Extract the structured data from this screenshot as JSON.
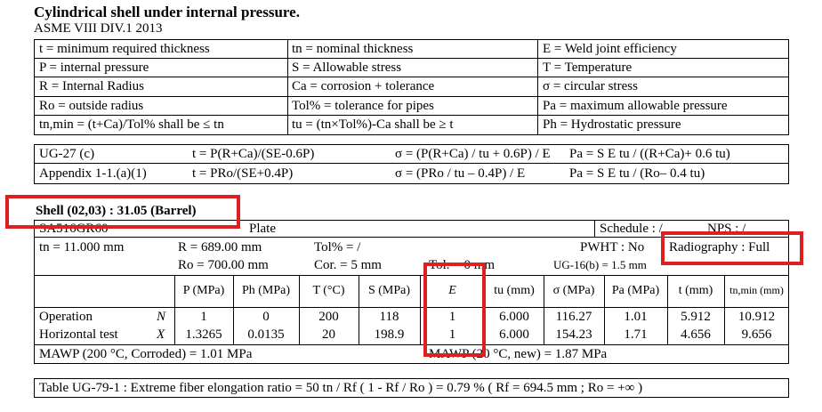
{
  "title": "Cylindrical shell under internal pressure.",
  "code": "ASME VIII DIV.1 2013",
  "legend": [
    [
      "t = minimum required thickness",
      "tn = nominal thickness",
      "E = Weld joint efficiency"
    ],
    [
      "P = internal pressure",
      "S = Allowable stress",
      "T = Temperature"
    ],
    [
      "R = Internal Radius",
      "Ca = corrosion + tolerance",
      "σ = circular stress"
    ],
    [
      "Ro = outside radius",
      "Tol% = tolerance for pipes",
      "Pa = maximum allowable pressure"
    ],
    [
      "tn,min = (t+Ca)/Tol% shall be ≤ tn",
      "tu = (tn×Tol%)-Ca shall be ≥ t",
      "Ph = Hydrostatic pressure"
    ]
  ],
  "formulas": [
    {
      "ref": "UG-27 (c)",
      "t": "t = P(R+Ca)/(SE-0.6P)",
      "sigma": "σ = (P(R+Ca) / tu + 0.6P) / E",
      "pa": "Pa = S E tu / ((R+Ca)+ 0.6 tu)"
    },
    {
      "ref": "Appendix 1-1.(a)(1)",
      "t": "t = PRo/(SE+0.4P)",
      "sigma": "σ = (PRo / tu – 0.4P) / E",
      "pa": "Pa = S E tu / (Ro– 0.4 tu)"
    }
  ],
  "shell": {
    "heading": "Shell (02,03) : 31.05 (Barrel)",
    "material": "SA516GR60",
    "form": "Plate",
    "schedule": "Schedule : /",
    "nps": "NPS : /",
    "tn": "tn = 11.000 mm",
    "R": "R = 689.00 mm",
    "tol": "Tol% = /",
    "pwht": "PWHT : No",
    "radiography": "Radiography : Full",
    "Ro": "Ro = 700.00 mm",
    "cor": "Cor. = 5 mm",
    "tolx": "Tol. = 0 mm",
    "ug16": "UG-16(b) = 1.5 mm"
  },
  "table": {
    "headers": [
      "P (MPa)",
      "Ph (MPa)",
      "T (°C)",
      "S (MPa)",
      "E",
      "tu (mm)",
      "σ (MPa)",
      "Pa (MPa)",
      "t (mm)",
      "tn,min (mm)"
    ],
    "rows": [
      {
        "label": "Operation",
        "sym": "N",
        "values": [
          "1",
          "0",
          "200",
          "118",
          "1",
          "6.000",
          "116.27",
          "1.01",
          "5.912",
          "10.912"
        ]
      },
      {
        "label": "Horizontal test",
        "sym": "X",
        "values": [
          "1.3265",
          "0.0135",
          "20",
          "198.9",
          "1",
          "6.000",
          "154.23",
          "1.71",
          "4.656",
          "9.656"
        ]
      }
    ]
  },
  "mawp_corroded": "MAWP (200 °C, Corroded) = 1.01 MPa",
  "mawp_new": "MAWP (20 °C, new) = 1.87 MPa",
  "ug79": "Table UG-79-1 : Extreme fiber elongation ratio = 50 tn / Rf ( 1 - Rf / Ro ) = 0.79 %   ( Rf = 694.5 mm ; Ro = +∞ )",
  "colors": {
    "highlight": "#e02020"
  }
}
